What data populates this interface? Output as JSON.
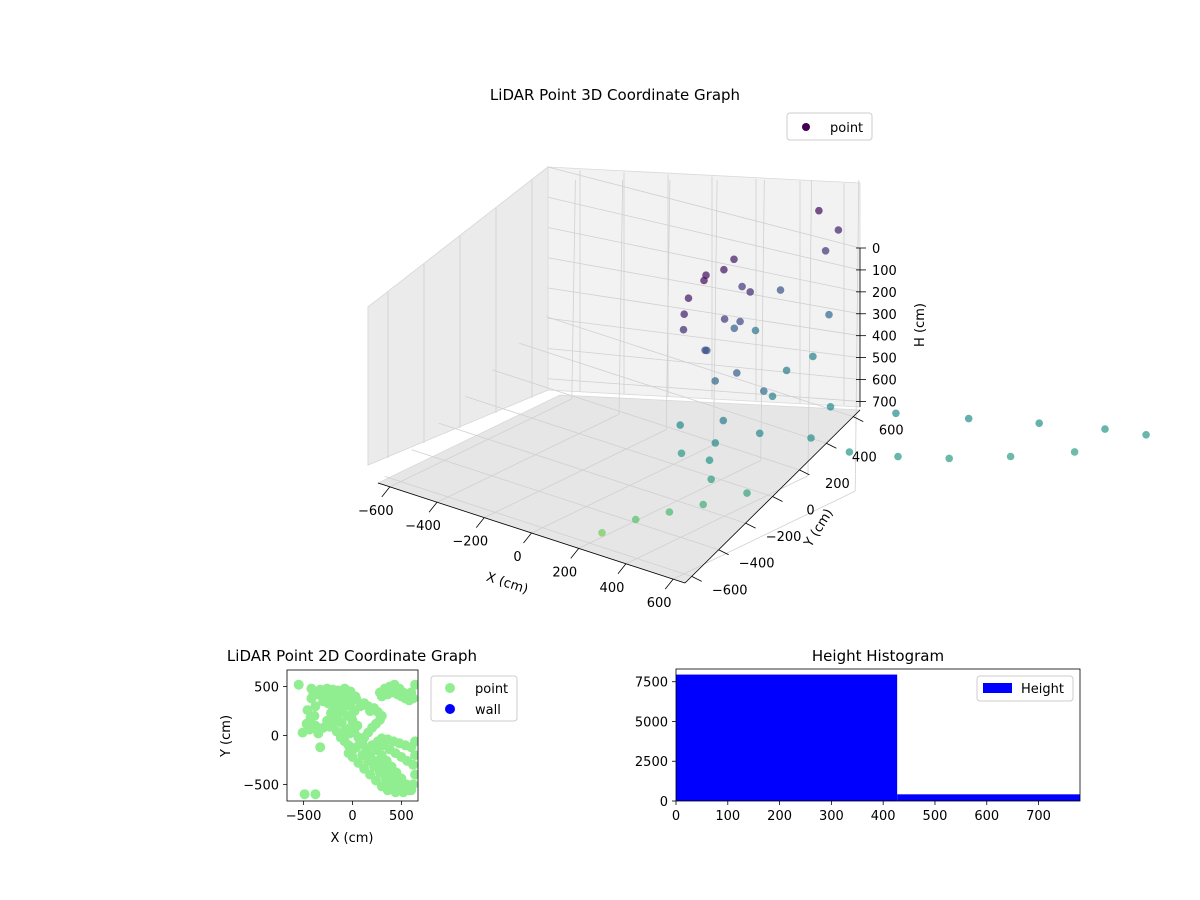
{
  "chart_data": [
    {
      "type": "scatter",
      "projection": "3d",
      "title": "LiDAR Point 3D Coordinate Graph",
      "xlabel": "X (cm)",
      "ylabel": "Y (cm)",
      "zlabel": "H (cm)",
      "xticks": [
        "−600",
        "−400",
        "−200",
        "0",
        "200",
        "400",
        "600"
      ],
      "yticks": [
        "−600",
        "−400",
        "−200",
        "0",
        "200",
        "400",
        "600"
      ],
      "zticks": [
        "0",
        "100",
        "200",
        "300",
        "400",
        "500",
        "600",
        "700"
      ],
      "xlim": [
        -650,
        650
      ],
      "ylim": [
        -650,
        650
      ],
      "zlim": [
        750,
        0
      ],
      "grid": true,
      "colormap": "viridis (by height)",
      "legend": {
        "position": "top-right",
        "entries": [
          {
            "label": "point",
            "color": "#440154"
          }
        ]
      },
      "series": [
        {
          "name": "point",
          "points": [
            [
              -430,
              170,
              70
            ],
            [
              -300,
              60,
              50
            ],
            [
              -250,
              -20,
              40
            ],
            [
              -180,
              -70,
              30
            ],
            [
              -120,
              -150,
              60
            ],
            [
              -60,
              -200,
              90
            ],
            [
              0,
              -240,
              120
            ],
            [
              60,
              -220,
              180
            ],
            [
              100,
              -160,
              260
            ],
            [
              120,
              -100,
              330
            ],
            [
              -350,
              120,
              280
            ],
            [
              -480,
              260,
              350
            ],
            [
              -200,
              40,
              200
            ],
            [
              -90,
              -120,
              240
            ],
            [
              80,
              -300,
              420
            ],
            [
              200,
              -260,
              380
            ],
            [
              260,
              -320,
              430
            ],
            [
              330,
              -380,
              460
            ],
            [
              400,
              -420,
              500
            ],
            [
              -380,
              160,
              150
            ],
            [
              -220,
              80,
              110
            ],
            [
              -140,
              -40,
              160
            ],
            [
              40,
              -180,
              300
            ],
            [
              180,
              -360,
              480
            ],
            [
              260,
              -200,
              420
            ],
            [
              320,
              -100,
              440
            ],
            [
              420,
              -60,
              470
            ],
            [
              500,
              20,
              480
            ],
            [
              560,
              120,
              490
            ],
            [
              600,
              260,
              500
            ],
            [
              620,
              420,
              510
            ],
            [
              -500,
              340,
              230
            ],
            [
              -420,
              420,
              310
            ],
            [
              -300,
              300,
              400
            ],
            [
              -160,
              140,
              380
            ],
            [
              0,
              0,
              400
            ],
            [
              120,
              80,
              420
            ],
            [
              240,
              180,
              430
            ],
            [
              360,
              300,
              440
            ],
            [
              470,
              420,
              450
            ],
            [
              560,
              540,
              470
            ],
            [
              640,
              600,
              480
            ],
            [
              -560,
              500,
              140
            ],
            [
              -600,
              560,
              90
            ],
            [
              -620,
              520,
              20
            ],
            [
              380,
              -520,
              600
            ],
            [
              300,
              -560,
              640
            ],
            [
              220,
              -600,
              700
            ],
            [
              460,
              -480,
              560
            ],
            [
              520,
              -400,
              520
            ]
          ]
        }
      ]
    },
    {
      "type": "scatter",
      "title": "LiDAR Point 2D Coordinate Graph",
      "xlabel": "X (cm)",
      "ylabel": "Y (cm)",
      "xticks": [
        -500,
        0,
        500
      ],
      "yticks": [
        -500,
        0,
        500
      ],
      "xlim": [
        -670,
        670
      ],
      "ylim": [
        -670,
        670
      ],
      "legend": {
        "position": "outside-right",
        "entries": [
          {
            "label": "point",
            "color": "#90ee90"
          },
          {
            "label": "wall",
            "color": "#0000ff"
          }
        ]
      },
      "series": [
        {
          "name": "point",
          "color": "#90ee90",
          "points": [
            [
              -550,
              520
            ],
            [
              -510,
              30
            ],
            [
              -490,
              -600
            ],
            [
              -380,
              -600
            ],
            [
              -330,
              -120
            ],
            [
              -420,
              480
            ],
            [
              -330,
              470
            ],
            [
              -260,
              480
            ],
            [
              -200,
              470
            ],
            [
              -150,
              460
            ],
            [
              -80,
              480
            ],
            [
              -20,
              450
            ],
            [
              30,
              400
            ],
            [
              -420,
              380
            ],
            [
              -380,
              300
            ],
            [
              -390,
              200
            ],
            [
              -380,
              100
            ],
            [
              -350,
              20
            ],
            [
              -300,
              80
            ],
            [
              -260,
              150
            ],
            [
              -220,
              230
            ],
            [
              -180,
              300
            ],
            [
              -140,
              380
            ],
            [
              -100,
              420
            ],
            [
              -60,
              360
            ],
            [
              -20,
              300
            ],
            [
              20,
              250
            ],
            [
              -300,
              350
            ],
            [
              -250,
              330
            ],
            [
              -200,
              260
            ],
            [
              -150,
              200
            ],
            [
              -110,
              130
            ],
            [
              -70,
              60
            ],
            [
              -30,
              20
            ],
            [
              -250,
              400
            ],
            [
              -200,
              380
            ],
            [
              -150,
              330
            ],
            [
              -100,
              270
            ],
            [
              -50,
              200
            ],
            [
              0,
              150
            ],
            [
              50,
              100
            ],
            [
              -200,
              100
            ],
            [
              -160,
              40
            ],
            [
              -120,
              -20
            ],
            [
              -80,
              -60
            ],
            [
              -40,
              -100
            ],
            [
              0,
              -150
            ],
            [
              40,
              -120
            ],
            [
              80,
              -60
            ],
            [
              120,
              -20
            ],
            [
              160,
              30
            ],
            [
              200,
              80
            ],
            [
              240,
              120
            ],
            [
              280,
              160
            ],
            [
              180,
              250
            ],
            [
              220,
              280
            ],
            [
              260,
              240
            ],
            [
              300,
              200
            ],
            [
              -20,
              80
            ],
            [
              20,
              30
            ],
            [
              60,
              -20
            ],
            [
              100,
              -80
            ],
            [
              140,
              -140
            ],
            [
              180,
              -200
            ],
            [
              220,
              -260
            ],
            [
              260,
              -320
            ],
            [
              300,
              -380
            ],
            [
              340,
              -440
            ],
            [
              380,
              -520
            ],
            [
              200,
              -100
            ],
            [
              250,
              -150
            ],
            [
              300,
              -200
            ],
            [
              350,
              -260
            ],
            [
              400,
              -320
            ],
            [
              450,
              -380
            ],
            [
              500,
              -440
            ],
            [
              550,
              -500
            ],
            [
              600,
              -560
            ],
            [
              260,
              -60
            ],
            [
              320,
              -100
            ],
            [
              380,
              -140
            ],
            [
              440,
              -180
            ],
            [
              500,
              -220
            ],
            [
              560,
              -260
            ],
            [
              620,
              -300
            ],
            [
              300,
              -30
            ],
            [
              360,
              -40
            ],
            [
              420,
              -60
            ],
            [
              480,
              -80
            ],
            [
              540,
              -100
            ],
            [
              600,
              -120
            ],
            [
              640,
              -60
            ],
            [
              640,
              -200
            ],
            [
              640,
              -400
            ],
            [
              620,
              -500
            ],
            [
              580,
              -560
            ],
            [
              520,
              -580
            ],
            [
              440,
              -580
            ],
            [
              360,
              -560
            ],
            [
              300,
              -520
            ],
            [
              240,
              -460
            ],
            [
              180,
              -400
            ],
            [
              120,
              -340
            ],
            [
              60,
              -280
            ],
            [
              0,
              -220
            ],
            [
              -40,
              -180
            ],
            [
              100,
              -200
            ],
            [
              160,
              -260
            ],
            [
              220,
              -320
            ],
            [
              280,
              -380
            ],
            [
              340,
              -420
            ],
            [
              400,
              -480
            ],
            [
              460,
              -520
            ],
            [
              500,
              -480
            ],
            [
              440,
              -440
            ],
            [
              380,
              -380
            ],
            [
              320,
              -320
            ],
            [
              260,
              -260
            ],
            [
              280,
              440
            ],
            [
              330,
              480
            ],
            [
              380,
              500
            ],
            [
              430,
              520
            ],
            [
              480,
              480
            ],
            [
              520,
              440
            ],
            [
              560,
              420
            ],
            [
              600,
              440
            ],
            [
              640,
              520
            ],
            [
              620,
              380
            ],
            [
              580,
              360
            ],
            [
              540,
              380
            ],
            [
              500,
              400
            ],
            [
              460,
              420
            ],
            [
              420,
              440
            ],
            [
              360,
              420
            ],
            [
              300,
              400
            ],
            [
              80,
              300
            ],
            [
              120,
              330
            ],
            [
              160,
              300
            ],
            [
              40,
              370
            ],
            [
              -460,
              260
            ],
            [
              -430,
              180
            ],
            [
              -470,
              120
            ],
            [
              -440,
              60
            ],
            [
              -400,
              430
            ],
            [
              -350,
              420
            ],
            [
              -280,
              420
            ],
            [
              -230,
              90
            ],
            [
              -190,
              170
            ],
            [
              -130,
              250
            ],
            [
              -90,
              330
            ],
            [
              -50,
              420
            ],
            [
              0,
              380
            ],
            [
              -10,
              180
            ]
          ]
        },
        {
          "name": "wall",
          "color": "#0000ff",
          "points": []
        }
      ]
    },
    {
      "type": "bar",
      "histogram": true,
      "title": "Height Histogram",
      "xticks": [
        0,
        100,
        200,
        300,
        400,
        500,
        600,
        700
      ],
      "yticks": [
        0,
        2500,
        5000,
        7500
      ],
      "xlim": [
        0,
        780
      ],
      "ylim": [
        0,
        8300
      ],
      "legend": {
        "position": "top-right",
        "entries": [
          {
            "label": "Height",
            "color": "#0000ff"
          }
        ]
      },
      "series": [
        {
          "name": "Height",
          "color": "#0000ff",
          "bins": [
            {
              "from": 0,
              "to": 427,
              "count": 7950
            },
            {
              "from": 427,
              "to": 780,
              "count": 420
            }
          ]
        }
      ]
    }
  ]
}
